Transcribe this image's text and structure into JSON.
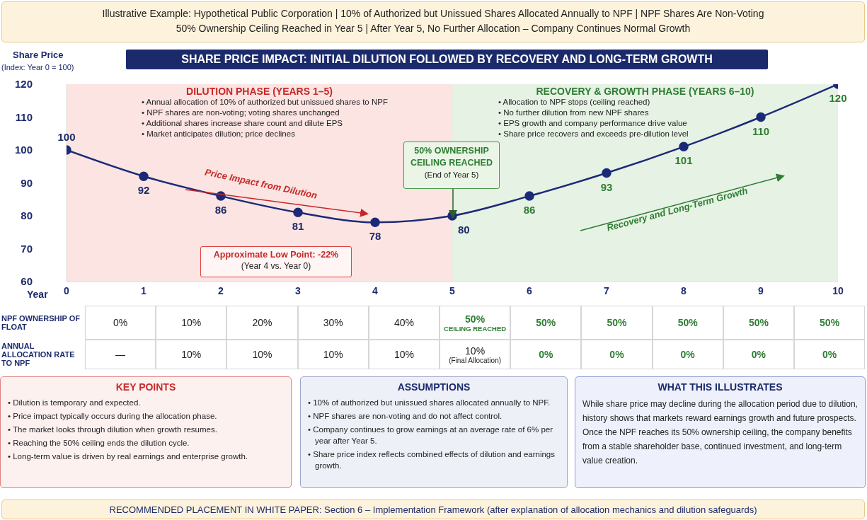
{
  "chart_data": {
    "type": "line",
    "title": "SHARE PRICE IMPACT: INITIAL DILUTION FOLLOWED BY RECOVERY AND LONG-TERM GROWTH",
    "ylabel": "Share Price",
    "xlabel": "Year",
    "x": [
      0,
      1,
      2,
      3,
      4,
      5,
      6,
      7,
      8,
      9,
      10
    ],
    "values": [
      100,
      92,
      86,
      81,
      78,
      80,
      86,
      93,
      101,
      110,
      120
    ],
    "color": "#1b2a78",
    "marker": "circle",
    "line_style": "solid",
    "data_labels": true,
    "xlim": [
      0,
      10
    ],
    "xticks": [
      0,
      1,
      2,
      3,
      4,
      5,
      6,
      7,
      8,
      9,
      10
    ],
    "ylim": [
      60,
      120
    ],
    "yticks": [
      60,
      70,
      80,
      90,
      100,
      110,
      120
    ],
    "bands": [
      {
        "axis": "x",
        "from": 0,
        "to": 5,
        "label": "DILUTION PHASE (YEARS 1–5)",
        "color": "#fbe4e2"
      },
      {
        "axis": "x",
        "from": 5,
        "to": 10,
        "label": "RECOVERY & GROWTH PHASE (YEARS 6–10)",
        "color": "#e6f2e4"
      }
    ],
    "annotations": [
      "Illustrative Example: Hypothetical Public Corporation  |  10% of Authorized but Unissued Shares Allocated Annually to NPF  |  NPF Shares Are Non-Voting",
      "50% Ownership Ceiling Reached in Year 5  |  After Year 5, No Further Allocation – Company Continues Normal Growth",
      "• Annual allocation of 10% of authorized but unissued shares to NPF",
      "• NPF shares are non-voting; voting shares unchanged",
      "• Additional shares increase share count and dilute EPS",
      "• Market anticipates dilution; price declines",
      "• Allocation to NPF stops (ceiling reached)",
      "• No further dilution from new NPF shares",
      "• EPS growth and company performance drive value",
      "• Share price recovers and exceeds pre-dilution level",
      "Price Impact from Dilution",
      "Recovery and Long-Term Growth",
      "50% OWNERSHIP CEILING REACHED",
      "(End of Year 5)",
      "Approximate Low Point: -22%",
      "(Year 4 vs. Year 0)",
      "(Index: Year 0 = 100)",
      "NPF OWNERSHIP OF FLOAT",
      "0%",
      "10%",
      "20%",
      "30%",
      "40%",
      "50%",
      "50%",
      "50%",
      "50%",
      "50%",
      "50%",
      "CEILING REACHED",
      "ANNUAL ALLOCATION RATE TO NPF",
      "—",
      "10%",
      "10%",
      "10%",
      "10%",
      "10%",
      "0%",
      "0%",
      "0%",
      "0%",
      "0%",
      "(Final Allocation)",
      "KEY POINTS",
      "• Dilution is temporary and expected.",
      "• Price impact typically occurs during the allocation phase.",
      "• The market looks through dilution when growth resumes.",
      "• Reaching the 50% ceiling ends the dilution cycle.",
      "• Long-term value is driven by real earnings and enterprise growth.",
      "ASSUMPTIONS",
      "• 10% of authorized but unissued shares allocated annually to NPF.",
      "• NPF shares are non-voting and do not affect control.",
      "• Company continues to grow earnings at an average rate of 6% per year after Year 5.",
      "• Share price index reflects combined effects of dilution and earnings growth.",
      "WHAT THIS ILLUSTRATES",
      "While share price may decline during the allocation period due to dilution, history shows that markets reward earnings growth and future prospects. Once the NPF reaches its 50% ownership ceiling, the company benefits from a stable shareholder base, continued investment, and long-term value creation.",
      "RECOMMENDED PLACEMENT IN WHITE PAPER: Section 6 – Implementation Framework (after explanation of allocation mechanics and dilution safeguards)"
    ]
  }
}
